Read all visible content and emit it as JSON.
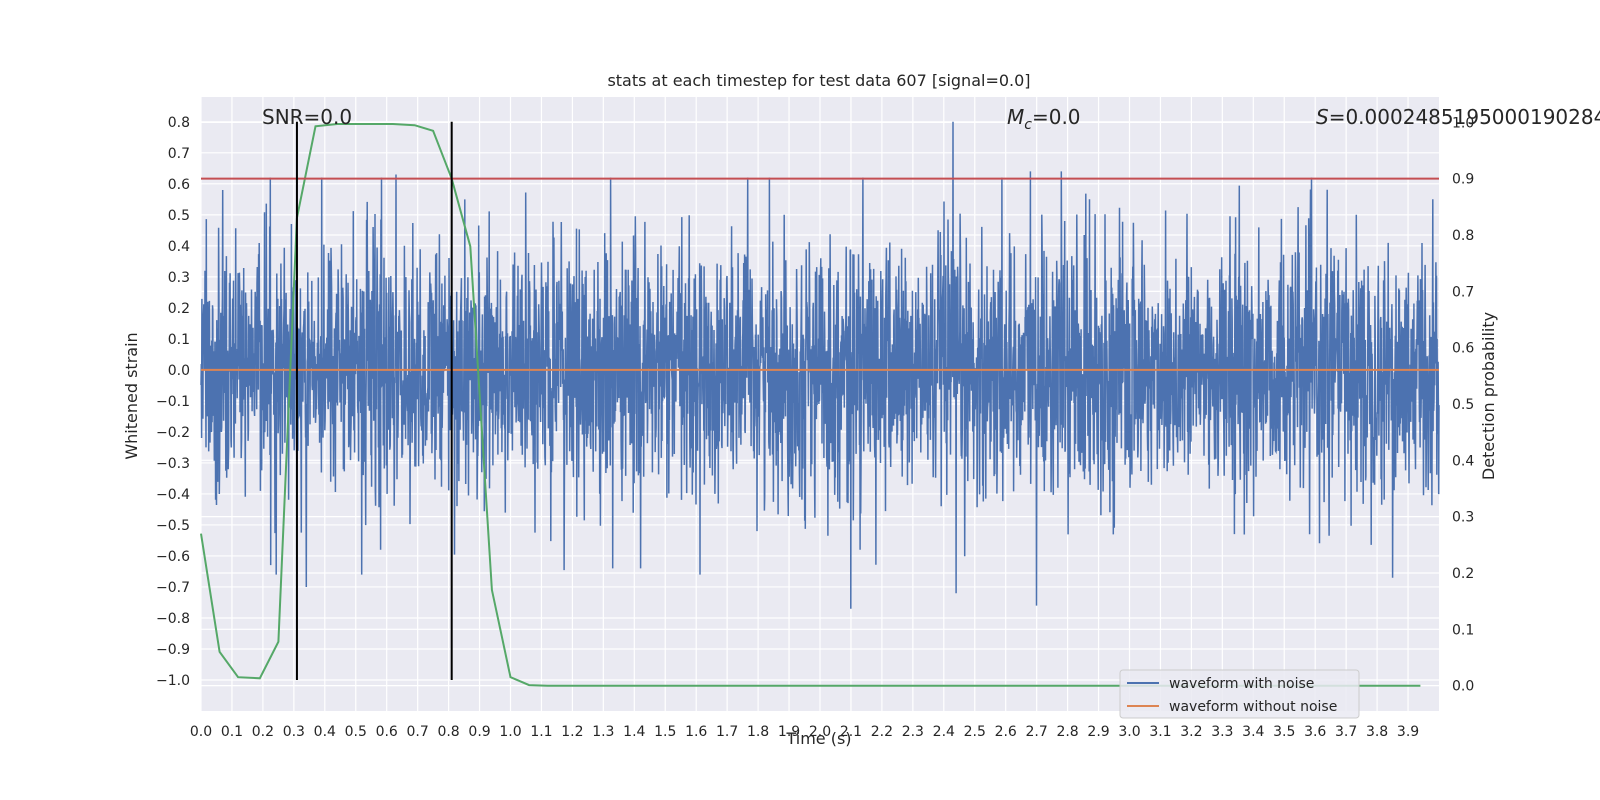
{
  "chart_data": {
    "type": "line",
    "title": "stats at each timestep for test data 607 [signal=0.0]",
    "xlabel": "Time (s)",
    "ylabel": "Whitened strain",
    "y2label": "Detection probability",
    "xlim": [
      0.0,
      4.0
    ],
    "ylim": [
      -1.1,
      0.88
    ],
    "y2lim": [
      -0.045,
      1.045
    ],
    "x_ticks": [
      0.0,
      0.1,
      0.2,
      0.3,
      0.4,
      0.5,
      0.6,
      0.7,
      0.8,
      0.9,
      1.0,
      1.1,
      1.2,
      1.3,
      1.4,
      1.5,
      1.6,
      1.7,
      1.8,
      1.9,
      2.0,
      2.1,
      2.2,
      2.3,
      2.4,
      2.5,
      2.6,
      2.7,
      2.8,
      2.9,
      3.0,
      3.1,
      3.2,
      3.3,
      3.4,
      3.5,
      3.6,
      3.7,
      3.8,
      3.9
    ],
    "x_tick_labels": [
      "0.0",
      "0.1",
      "0.2",
      "0.3",
      "0.4",
      "0.5",
      "0.6",
      "0.7",
      "0.8",
      "0.9",
      "1.0",
      "1.1",
      "1.2",
      "1.3",
      "1.4",
      "1.5",
      "1.6",
      "1.7",
      "1.8",
      "1.9",
      "2.0",
      "2.1",
      "2.2",
      "2.3",
      "2.4",
      "2.5",
      "2.6",
      "2.7",
      "2.8",
      "2.9",
      "3.0",
      "3.1",
      "3.2",
      "3.3",
      "3.4",
      "3.5",
      "3.6",
      "3.7",
      "3.8",
      "3.9"
    ],
    "y_ticks": [
      0.8,
      0.7,
      0.6,
      0.5,
      0.4,
      0.3,
      0.2,
      0.1,
      0.0,
      -0.1,
      -0.2,
      -0.3,
      -0.4,
      -0.5,
      -0.6,
      -0.7,
      -0.8,
      -0.9,
      -1.0
    ],
    "y_tick_labels": [
      "0.8",
      "0.7",
      "0.6",
      "0.5",
      "0.4",
      "0.3",
      "0.2",
      "0.1",
      "0.0",
      "−0.1",
      "−0.2",
      "−0.3",
      "−0.4",
      "−0.5",
      "−0.6",
      "−0.7",
      "−0.8",
      "−0.9",
      "−1.0"
    ],
    "y2_ticks": [
      1.0,
      0.9,
      0.8,
      0.7,
      0.6,
      0.5,
      0.4,
      0.3,
      0.2,
      0.1,
      0.0
    ],
    "y2_tick_labels": [
      "1.0",
      "0.9",
      "0.8",
      "0.7",
      "0.6",
      "0.5",
      "0.4",
      "0.3",
      "0.2",
      "0.1",
      "0.0"
    ],
    "grid": true,
    "annotations": {
      "snr": "SNR=0.0",
      "mc_symbol": "M",
      "mc_sub": "c",
      "mc_value": "=0.0",
      "s_symbol": "S",
      "s_value": "=0.0002485195000190284"
    },
    "legend": {
      "placement": "lower-right",
      "entries": [
        "waveform with noise",
        "waveform without noise"
      ]
    },
    "series": [
      {
        "name": "waveform with noise",
        "kind": "noise",
        "color": "#4c72b0",
        "std": 0.2,
        "peaks": [
          {
            "x": 2.43,
            "y": 0.8
          },
          {
            "x": 2.44,
            "y": -0.72
          },
          {
            "x": 2.1,
            "y": -0.77
          },
          {
            "x": 2.7,
            "y": -0.76
          },
          {
            "x": 2.68,
            "y": 0.64
          },
          {
            "x": 2.78,
            "y": 0.64
          },
          {
            "x": 0.63,
            "y": 0.63
          },
          {
            "x": 0.34,
            "y": -0.7
          },
          {
            "x": 3.85,
            "y": -0.67
          },
          {
            "x": 1.42,
            "y": -0.64
          },
          {
            "x": 1.33,
            "y": -0.64
          },
          {
            "x": 0.58,
            "y": -0.58
          },
          {
            "x": 2.13,
            "y": -0.58
          },
          {
            "x": 3.98,
            "y": 0.55
          },
          {
            "x": 0.07,
            "y": 0.58
          }
        ]
      },
      {
        "name": "waveform without noise",
        "kind": "flat",
        "color": "#dd8452",
        "x": [
          0.0,
          4.0
        ],
        "y": [
          0.0,
          0.0
        ]
      },
      {
        "name": "detection probability",
        "axis": "right",
        "kind": "line",
        "color": "#55a868",
        "x": [
          0.0,
          0.06,
          0.12,
          0.19,
          0.25,
          0.31,
          0.37,
          0.44,
          0.5,
          0.56,
          0.62,
          0.69,
          0.75,
          0.81,
          0.87,
          0.94,
          1.0,
          1.06,
          1.12,
          1.5,
          2.0,
          2.5,
          3.0,
          3.5,
          3.94
        ],
        "y": [
          0.27,
          0.06,
          0.015,
          0.013,
          0.078,
          0.83,
          0.993,
          0.997,
          0.997,
          0.997,
          0.997,
          0.995,
          0.985,
          0.9,
          0.78,
          0.17,
          0.015,
          0.001,
          0.0,
          0.0,
          0.0,
          0.0,
          0.0,
          0.0,
          0.0
        ]
      }
    ],
    "reference_lines": [
      {
        "orientation": "horizontal",
        "axis": "right",
        "value": 0.9,
        "color": "#c44e52"
      },
      {
        "orientation": "vertical",
        "x": 0.31,
        "ymin": -1.0,
        "ymax": 0.8,
        "color": "#000000"
      },
      {
        "orientation": "vertical",
        "x": 0.81,
        "ymin": -1.0,
        "ymax": 0.8,
        "color": "#000000"
      }
    ]
  }
}
